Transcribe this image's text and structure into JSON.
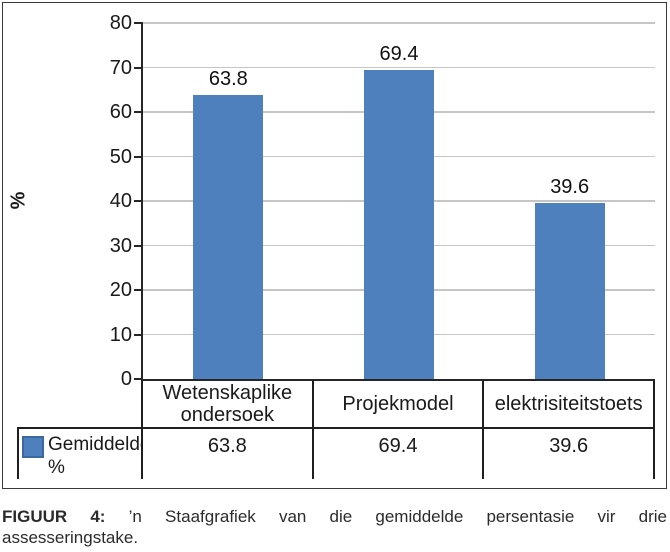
{
  "chart_data": {
    "type": "bar",
    "title": "",
    "categories": [
      "Wetenskaplike ondersoek",
      "Projekmodel",
      "elektrisiteitstoets"
    ],
    "series": [
      {
        "name": "Gemiddelde %",
        "values": [
          63.8,
          69.4,
          39.6
        ]
      }
    ],
    "xlabel": "",
    "ylabel": "%",
    "ylim": [
      0,
      80
    ],
    "yticks": [
      0,
      10,
      20,
      30,
      40,
      50,
      60,
      70,
      80
    ],
    "grid": true,
    "legend_position": "table-left",
    "data_table_row_label": "Gemiddelde %",
    "colors": {
      "bar_fill": "#4d80bd",
      "bar_swatch_border": "#3c68a0",
      "gridline": "#c6c6c6",
      "axis": "#262626",
      "table_border": "#1f1f1f"
    }
  },
  "caption": {
    "label": "FIGUUR 4:",
    "line1": "’n Staafgrafiek van die gemiddelde persentasie vir drie",
    "line2": "assesseringstake."
  }
}
